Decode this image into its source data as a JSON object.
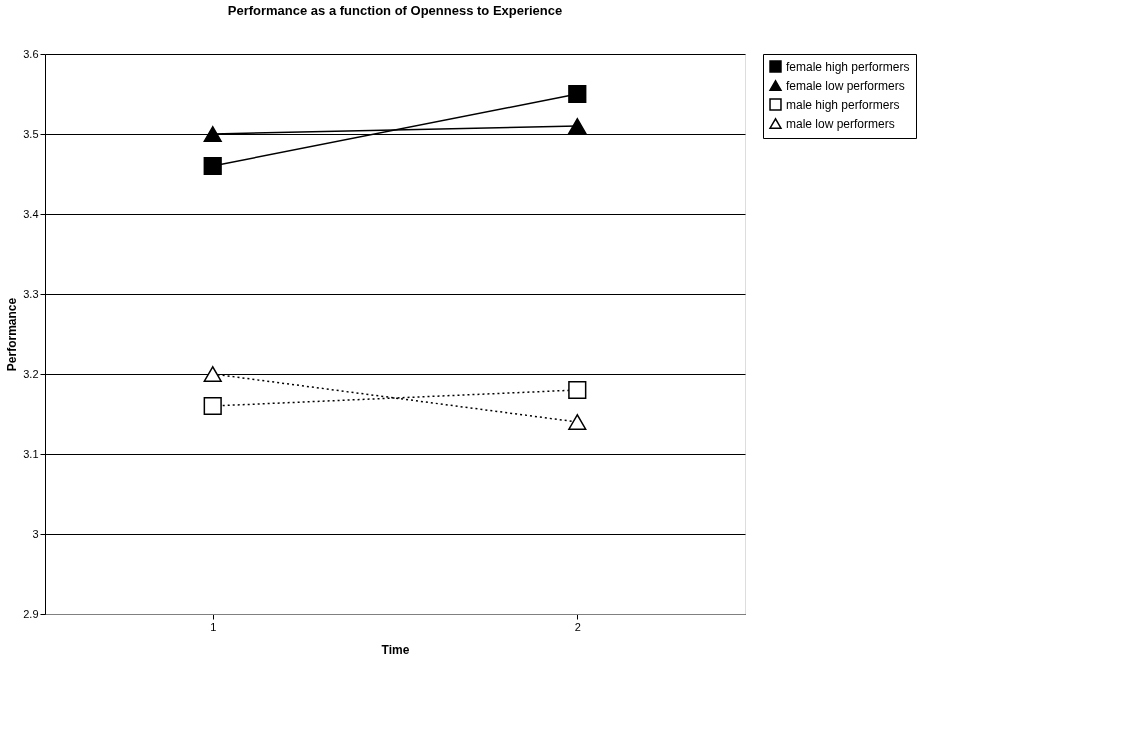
{
  "chart_data": {
    "type": "line",
    "title": "Performance as a function of Openness to Experience",
    "xlabel": "Time",
    "ylabel": "Performance",
    "categories": [
      "1",
      "2"
    ],
    "series": [
      {
        "name": "female high performers",
        "color": "#000000",
        "values": [
          3.46,
          3.55
        ],
        "marker": "square",
        "line_style": "solid"
      },
      {
        "name": "female low performers",
        "color": "#000000",
        "values": [
          3.5,
          3.51
        ],
        "marker": "triangle",
        "line_style": "solid"
      },
      {
        "name": "male high performers",
        "color": "#000000",
        "values": [
          3.16,
          3.18
        ],
        "marker": "square",
        "line_style": "dotted"
      },
      {
        "name": "male low performers",
        "color": "#000000",
        "values": [
          3.2,
          3.14
        ],
        "marker": "triangle",
        "line_style": "dotted"
      }
    ],
    "ylim": [
      2.9,
      3.6
    ],
    "yticks": [
      2.9,
      3,
      3.1,
      3.2,
      3.3,
      3.4,
      3.5,
      3.6
    ],
    "grid": "y",
    "legend": "right"
  }
}
